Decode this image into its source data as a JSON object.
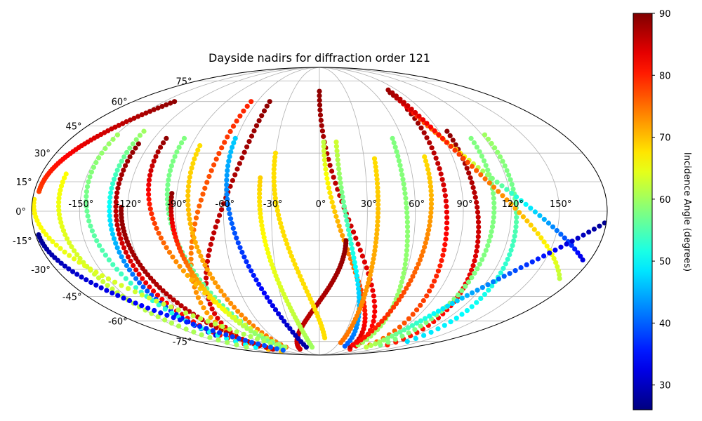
{
  "chart_data": {
    "type": "scatter",
    "projection": "mollweide",
    "title": "Dayside nadirs for diffraction order 121",
    "grid": true,
    "longitude_ticks": [
      -150,
      -120,
      -90,
      -60,
      -30,
      0,
      30,
      60,
      90,
      120,
      150
    ],
    "latitude_ticks": [
      -75,
      -60,
      -45,
      -30,
      -15,
      0,
      15,
      30,
      45,
      60,
      75
    ],
    "longitude_tick_labels": [
      "-150°",
      "-120°",
      "-90°",
      "-60°",
      "-30°",
      "0°",
      "30°",
      "60°",
      "90°",
      "120°",
      "150°"
    ],
    "latitude_tick_labels": [
      "-75°",
      "-60°",
      "-45°",
      "-30°",
      "-15°",
      "0°",
      "15°",
      "30°",
      "45°",
      "60°",
      "75°"
    ],
    "colorbar": {
      "label": "Incidence Angle (degrees)",
      "colormap": "jet",
      "range": [
        26,
        90
      ],
      "ticks": [
        30,
        40,
        50,
        60,
        70,
        80,
        90
      ],
      "tick_labels": [
        "30",
        "40",
        "50",
        "60",
        "70",
        "80",
        "90"
      ]
    },
    "tracks": [
      {
        "lon_top": 0,
        "lat_top": 67,
        "lon_bottom": 68,
        "lat_bottom": -82,
        "lat_min": 67,
        "inc_top": 89,
        "inc_bottom": 81
      },
      {
        "lon_top": 3,
        "lat_top": 36,
        "lon_bottom": 59,
        "lat_bottom": -80,
        "inc_top": 62,
        "inc_bottom": 86
      },
      {
        "lon_top": 12,
        "lat_top": 36,
        "lon_bottom": 46,
        "lat_bottom": -79,
        "inc_top": 63,
        "inc_bottom": 40
      },
      {
        "lon_top": 17,
        "lat_top": -15,
        "lon_bottom": -43,
        "lat_bottom": -82,
        "inc_top": 89,
        "inc_bottom": 85
      },
      {
        "lon_top": -30,
        "lat_top": 30,
        "lon_bottom": 7,
        "lat_bottom": -72,
        "inc_top": 68,
        "inc_bottom": 68
      },
      {
        "lon_top": -38,
        "lat_top": 17,
        "lon_bottom": -14,
        "lat_bottom": -80,
        "inc_top": 69,
        "inc_bottom": 60
      },
      {
        "lon_top": -48,
        "lat_top": 60,
        "lon_bottom": -112,
        "lat_bottom": -82,
        "inc_top": 89,
        "inc_bottom": 83
      },
      {
        "lon_top": -66,
        "lat_top": 60,
        "lon_bottom": -115,
        "lat_bottom": -85,
        "inc_top": 80,
        "inc_bottom": 70
      },
      {
        "lon_top": -61,
        "lat_top": 38,
        "lon_bottom": -25,
        "lat_bottom": -80,
        "inc_top": 47,
        "inc_bottom": 28
      },
      {
        "lon_top": -84,
        "lat_top": 34,
        "lon_bottom": -64,
        "lat_bottom": -80,
        "inc_top": 68,
        "inc_bottom": 75
      },
      {
        "lon_top": -98,
        "lat_top": 38,
        "lon_bottom": -69,
        "lat_bottom": -80,
        "inc_top": 58,
        "inc_bottom": 55
      },
      {
        "lon_top": -111,
        "lat_top": 38,
        "lon_bottom": -66,
        "lat_bottom": -80,
        "inc_top": 89,
        "inc_bottom": 60
      },
      {
        "lon_top": -93,
        "lat_top": 9,
        "lon_bottom": -73,
        "lat_bottom": -80,
        "inc_top": 89,
        "inc_bottom": 55
      },
      {
        "lon_top": -124,
        "lat_top": 2,
        "lon_bottom": -103,
        "lat_bottom": -82,
        "inc_top": 89,
        "inc_bottom": 85
      },
      {
        "lon_top": -128,
        "lat_top": 35,
        "lon_bottom": -122,
        "lat_bottom": -77,
        "inc_top": 89,
        "inc_bottom": 80
      },
      {
        "lon_top": -132,
        "lat_top": 42,
        "lon_bottom": -128,
        "lat_bottom": -70,
        "inc_top": 60,
        "inc_bottom": 32
      },
      {
        "lon_top": -149,
        "lat_top": 40,
        "lon_bottom": -122,
        "lat_bottom": -80,
        "inc_top": 60,
        "inc_bottom": 50
      },
      {
        "lon_top": -164,
        "lat_top": 19,
        "lon_bottom": -140,
        "lat_bottom": -80,
        "inc_top": 66,
        "inc_bottom": 60
      },
      {
        "lon_top": 37,
        "lat_top": 27,
        "lon_bottom": 33,
        "lat_bottom": -76,
        "inc_top": 68,
        "inc_bottom": 75
      },
      {
        "lon_top": 53,
        "lat_top": 38,
        "lon_bottom": 66,
        "lat_bottom": -78,
        "inc_top": 58,
        "inc_bottom": 60
      },
      {
        "lon_top": 71,
        "lat_top": 28,
        "lon_bottom": 57,
        "lat_bottom": -78,
        "inc_top": 68,
        "inc_bottom": 82
      },
      {
        "lon_top": 78,
        "lat_top": 55,
        "lon_bottom": 86,
        "lat_bottom": -78,
        "inc_top": 89,
        "inc_bottom": 75
      },
      {
        "lon_top": 96,
        "lat_top": 42,
        "lon_bottom": 116,
        "lat_bottom": -78,
        "inc_top": 89,
        "inc_bottom": 80
      },
      {
        "lon_top": 110,
        "lat_top": 38,
        "lon_bottom": 104,
        "lat_bottom": -78,
        "inc_top": 58,
        "inc_bottom": 58
      },
      {
        "lon_top": 122,
        "lat_top": 40,
        "lon_bottom": 130,
        "lat_bottom": -75,
        "inc_top": 60,
        "inc_bottom": 48
      },
      {
        "lon_top": 78,
        "lat_top": 66,
        "lon_bottom": 175,
        "lat_bottom": -25,
        "inc_top": 89,
        "inc_bottom": 32
      },
      {
        "lon_top": 80,
        "lat_top": 68,
        "lon_bottom": 170,
        "lat_bottom": -35,
        "inc_top": 88,
        "inc_bottom": 62
      },
      {
        "lon_top": -179,
        "lat_top": 6,
        "lon_bottom": -70,
        "lat_bottom": -80,
        "inc_top": 67,
        "inc_bottom": 60
      },
      {
        "lon_top": -178,
        "lat_top": -12,
        "lon_bottom": -88,
        "lat_bottom": -83,
        "inc_top": 27,
        "inc_bottom": 40
      },
      {
        "lon_top": -177,
        "lat_top": 10,
        "lon_bottom": -140,
        "lat_bottom": 60,
        "inc_top": 78,
        "inc_bottom": 89
      },
      {
        "lon_top": 90,
        "lat_top": -80,
        "lon_bottom": 179,
        "lat_bottom": -6,
        "inc_top": 62,
        "inc_bottom": 27
      }
    ]
  }
}
